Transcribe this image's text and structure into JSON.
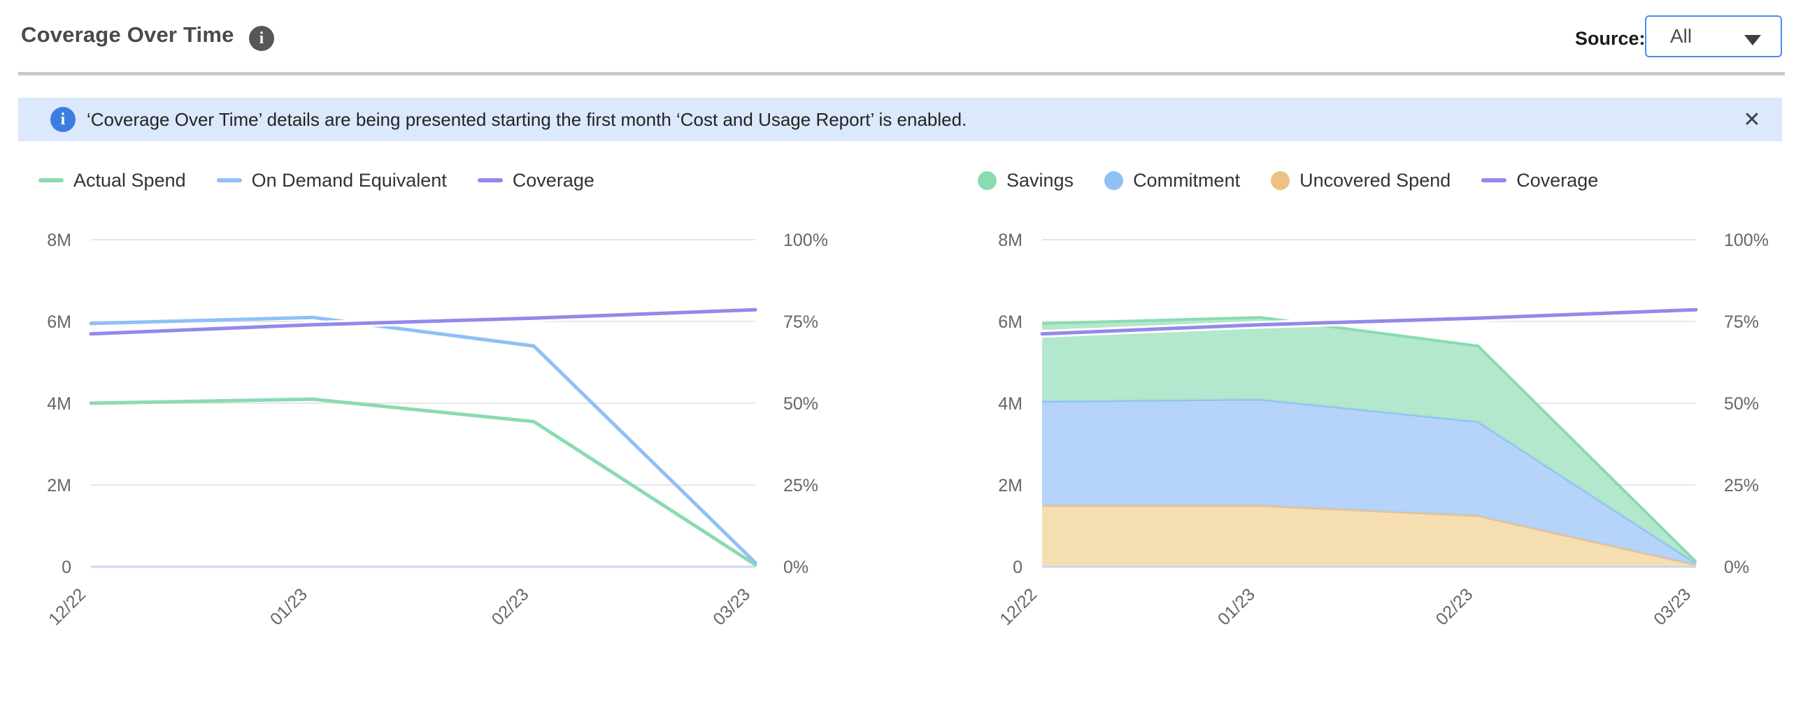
{
  "header": {
    "title": "Coverage Over Time",
    "title_info_icon": "i",
    "source_label": "Source:",
    "source_value": "All"
  },
  "banner": {
    "info_icon": "i",
    "text": "‘Coverage Over Time’ details are being presented starting the first month ‘Cost and Usage Report’ is enabled.",
    "close_icon": "✕"
  },
  "colors": {
    "green": "#8adbb0",
    "blue": "#8fc0f6",
    "purple": "#9289ea",
    "orange_edge": "#ecc184",
    "green_fill": "#abe6c9",
    "blue_fill": "#aecff9",
    "orange_fill": "#f4dcaa",
    "gridline": "#e6e6e6",
    "axis_line": "#ccd6eb",
    "axis_label": "#666666",
    "banner_bg": "#dce8fb",
    "banner_icon": "#3d7de0",
    "dropdown_border": "#4b8bf5",
    "divider": "#c9c9c9"
  },
  "chart_data": [
    {
      "type": "line",
      "title": "",
      "x": [
        "12/22",
        "01/23",
        "02/23",
        "03/23"
      ],
      "grid": true,
      "legend_position": "top",
      "left_axis": {
        "ticks": [
          "8M",
          "6M",
          "4M",
          "2M",
          "0"
        ],
        "min": 0,
        "max": 8000000,
        "unit": "M"
      },
      "right_axis": {
        "ticks": [
          "100%",
          "75%",
          "50%",
          "25%",
          "0%"
        ],
        "min": 0,
        "max": 100,
        "unit": "%"
      },
      "series": [
        {
          "name": "Actual Spend",
          "type": "line",
          "axis": "left",
          "color": "#8adbb0",
          "values": [
            4.0,
            4.1,
            3.55,
            0.05
          ]
        },
        {
          "name": "On Demand Equivalent",
          "type": "line",
          "axis": "left",
          "color": "#8fc0f6",
          "values": [
            5.95,
            6.1,
            5.4,
            0.1
          ]
        },
        {
          "name": "Coverage",
          "type": "line",
          "axis": "right",
          "color": "#9289ea",
          "halo": "#ffffff",
          "values": [
            71.2,
            74,
            76,
            78.6
          ]
        }
      ]
    },
    {
      "type": "area-stacked",
      "title": "",
      "x": [
        "12/22",
        "01/23",
        "02/23",
        "03/23"
      ],
      "grid": true,
      "legend_position": "top",
      "left_axis": {
        "ticks": [
          "8M",
          "6M",
          "4M",
          "2M",
          "0"
        ],
        "min": 0,
        "max": 8000000,
        "unit": "M"
      },
      "right_axis": {
        "ticks": [
          "100%",
          "75%",
          "50%",
          "25%",
          "0%"
        ],
        "min": 0,
        "max": 100,
        "unit": "%"
      },
      "series": [
        {
          "name": "Savings",
          "type": "area",
          "axis": "left",
          "stack_level": 3,
          "color": "#8adbb0",
          "fill": "#abe6c9",
          "values": [
            1.9,
            2.0,
            1.85,
            0.03
          ]
        },
        {
          "name": "Commitment",
          "type": "area",
          "axis": "left",
          "stack_level": 2,
          "color": "#8fc0f6",
          "fill": "#aecff9",
          "values": [
            2.55,
            2.6,
            2.3,
            0.04
          ]
        },
        {
          "name": "Uncovered Spend",
          "type": "area",
          "axis": "left",
          "stack_level": 1,
          "color": "#ecc184",
          "fill": "#f4dcaa",
          "values": [
            1.5,
            1.5,
            1.25,
            0.05
          ]
        },
        {
          "name": "Coverage",
          "type": "line",
          "axis": "right",
          "color": "#9289ea",
          "halo": "#ffffff",
          "values": [
            71.2,
            74,
            76,
            78.6
          ]
        }
      ]
    }
  ]
}
